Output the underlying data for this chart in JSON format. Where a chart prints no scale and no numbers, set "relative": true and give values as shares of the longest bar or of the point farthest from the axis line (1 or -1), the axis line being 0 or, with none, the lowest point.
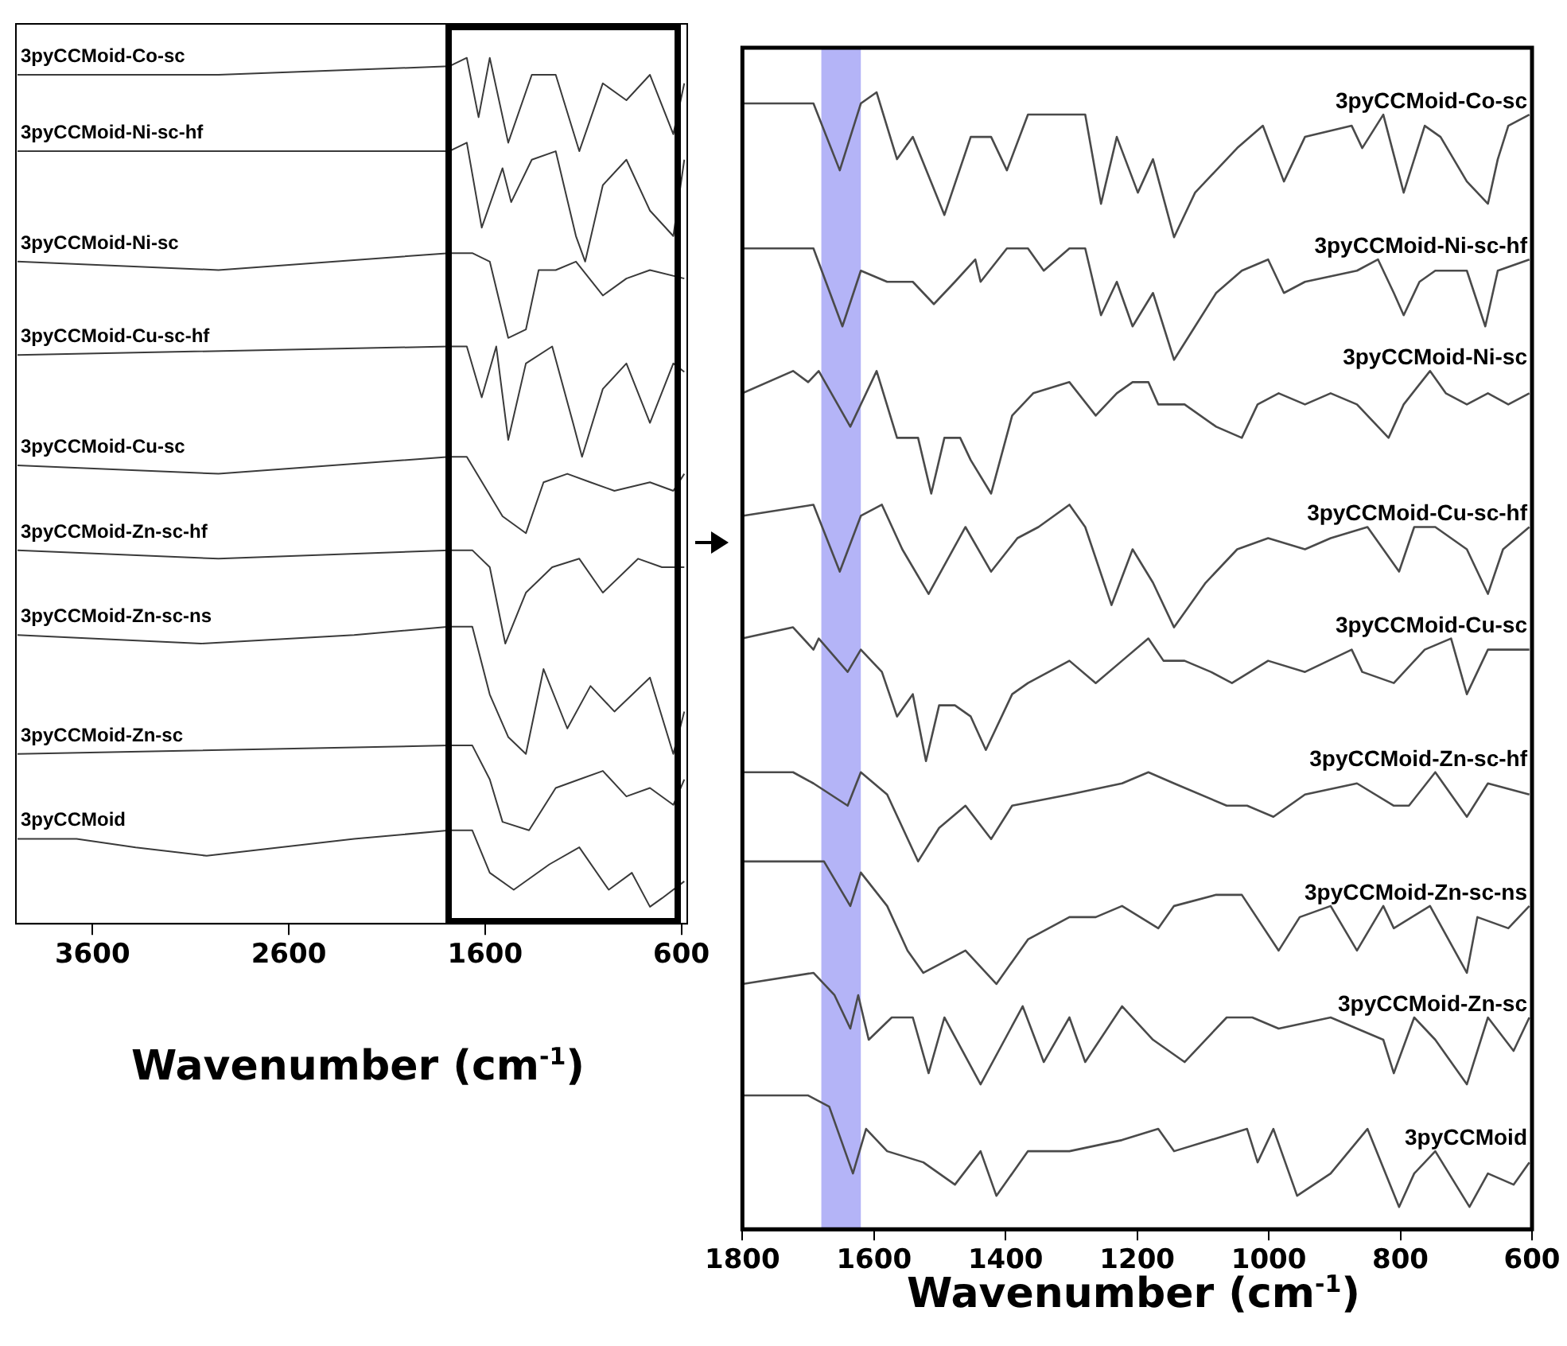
{
  "chart_data": [
    {
      "type": "line",
      "relative": true,
      "xlabel": "Wavenumber (cm$^{-1}$)",
      "xlim": [
        3990,
        570
      ],
      "xticks": [
        3600,
        2600,
        1600,
        600
      ],
      "marker": "none",
      "line_style": "solid",
      "legend": false,
      "series": [
        {
          "name": "3pyCCMoid-Co-sc",
          "color": "#3a3a3a",
          "x": [
            3982,
            2958,
            1783,
            1693,
            1633,
            1576,
            1482,
            1362,
            1240,
            1120,
            1000,
            880,
            760,
            641,
            585
          ],
          "values": [
            0.98,
            0.98,
            0.99,
            1.0,
            0.93,
            1.0,
            0.9,
            0.98,
            0.98,
            0.89,
            0.97,
            0.95,
            0.98,
            0.91,
            0.97
          ]
        },
        {
          "name": "3pyCCMoid-Ni-sc-hf",
          "color": "#3a3a3a",
          "x": [
            3982,
            1783,
            1693,
            1617,
            1511,
            1467,
            1362,
            1240,
            1137,
            1090,
            1000,
            880,
            760,
            641,
            585
          ],
          "values": [
            0.89,
            0.89,
            0.9,
            0.8,
            0.87,
            0.83,
            0.88,
            0.89,
            0.79,
            0.76,
            0.85,
            0.88,
            0.82,
            0.79,
            0.88
          ]
        },
        {
          "name": "3pyCCMoid-Ni-sc",
          "color": "#3a3a3a",
          "x": [
            3982,
            2958,
            1783,
            1665,
            1576,
            1482,
            1392,
            1327,
            1240,
            1137,
            1000,
            880,
            760,
            585
          ],
          "values": [
            0.76,
            0.75,
            0.77,
            0.77,
            0.76,
            0.67,
            0.68,
            0.75,
            0.75,
            0.76,
            0.72,
            0.74,
            0.75,
            0.74
          ]
        },
        {
          "name": "3pyCCMoid-Cu-sc-hf",
          "color": "#3a3a3a",
          "x": [
            3982,
            1783,
            1693,
            1617,
            1543,
            1482,
            1392,
            1258,
            1152,
            1106,
            1000,
            880,
            760,
            641,
            585
          ],
          "values": [
            0.65,
            0.66,
            0.66,
            0.6,
            0.66,
            0.55,
            0.64,
            0.66,
            0.57,
            0.53,
            0.61,
            0.64,
            0.57,
            0.64,
            0.63
          ]
        },
        {
          "name": "3pyCCMoid-Cu-sc",
          "color": "#3a3a3a",
          "x": [
            3982,
            2958,
            1783,
            1693,
            1511,
            1392,
            1302,
            1181,
            1063,
            941,
            760,
            641,
            585
          ],
          "values": [
            0.52,
            0.51,
            0.53,
            0.53,
            0.46,
            0.44,
            0.5,
            0.51,
            0.5,
            0.49,
            0.5,
            0.49,
            0.51
          ]
        },
        {
          "name": "3pyCCMoid-Zn-sc-hf",
          "color": "#3a3a3a",
          "x": [
            3982,
            2958,
            1783,
            1665,
            1576,
            1497,
            1392,
            1258,
            1120,
            1000,
            820,
            699,
            585
          ],
          "values": [
            0.42,
            0.41,
            0.42,
            0.42,
            0.4,
            0.31,
            0.37,
            0.4,
            0.41,
            0.37,
            0.41,
            0.4,
            0.4
          ]
        },
        {
          "name": "3pyCCMoid-Zn-sc-ns",
          "color": "#3a3a3a",
          "x": [
            3982,
            3047,
            2267,
            1783,
            1665,
            1576,
            1482,
            1392,
            1302,
            1181,
            1063,
            941,
            760,
            641,
            585
          ],
          "values": [
            0.32,
            0.31,
            0.32,
            0.33,
            0.33,
            0.25,
            0.2,
            0.18,
            0.28,
            0.21,
            0.26,
            0.23,
            0.27,
            0.18,
            0.23
          ]
        },
        {
          "name": "3pyCCMoid-Zn-sc",
          "color": "#3a3a3a",
          "x": [
            3982,
            1783,
            1665,
            1576,
            1511,
            1376,
            1240,
            1120,
            1000,
            880,
            760,
            641,
            585
          ],
          "values": [
            0.18,
            0.19,
            0.19,
            0.15,
            0.1,
            0.09,
            0.14,
            0.15,
            0.16,
            0.13,
            0.14,
            0.12,
            0.15
          ]
        },
        {
          "name": "3pyCCMoid",
          "color": "#3a3a3a",
          "x": [
            3982,
            3681,
            3380,
            3018,
            2267,
            1783,
            1665,
            1576,
            1454,
            1272,
            1120,
            970,
            852,
            760,
            699,
            585
          ],
          "values": [
            0.08,
            0.08,
            0.07,
            0.06,
            0.08,
            0.09,
            0.09,
            0.04,
            0.02,
            0.05,
            0.07,
            0.02,
            0.04,
            0.0,
            0.01,
            0.03
          ]
        }
      ]
    },
    {
      "type": "line",
      "relative": true,
      "xlabel": "Wavenumber (cm$^{-1}$)",
      "xlim": [
        1800,
        600
      ],
      "xticks": [
        1800,
        1600,
        1400,
        1200,
        1000,
        800,
        600
      ],
      "marker": "none",
      "line_style": "solid",
      "legend": false,
      "bands": [
        {
          "axis": "x",
          "from": 1680,
          "to": 1620,
          "color": "#b4b4f7"
        }
      ],
      "series": [
        {
          "name": "3pyCCMoid-Co-sc",
          "color": "#4a4a4a",
          "x": [
            1800,
            1692,
            1652,
            1620,
            1596,
            1565,
            1541,
            1493,
            1453,
            1422,
            1398,
            1366,
            1303,
            1279,
            1255,
            1231,
            1199,
            1176,
            1144,
            1112,
            1080,
            1048,
            1009,
            977,
            945,
            874,
            858,
            826,
            795,
            763,
            739,
            699,
            667,
            652,
            636,
            604
          ],
          "values": [
            0.99,
            0.99,
            0.93,
            0.99,
            1.0,
            0.94,
            0.96,
            0.89,
            0.96,
            0.96,
            0.93,
            0.98,
            0.98,
            0.98,
            0.9,
            0.96,
            0.91,
            0.94,
            0.87,
            0.91,
            0.93,
            0.95,
            0.97,
            0.92,
            0.96,
            0.97,
            0.95,
            0.98,
            0.91,
            0.97,
            0.96,
            0.92,
            0.9,
            0.94,
            0.97,
            0.98
          ]
        },
        {
          "name": "3pyCCMoid-Ni-sc-hf",
          "color": "#4a4a4a",
          "x": [
            1800,
            1692,
            1648,
            1620,
            1580,
            1541,
            1509,
            1477,
            1446,
            1438,
            1398,
            1366,
            1342,
            1303,
            1279,
            1255,
            1231,
            1207,
            1176,
            1144,
            1112,
            1080,
            1041,
            1001,
            977,
            945,
            866,
            834,
            810,
            795,
            771,
            747,
            699,
            671,
            652,
            604
          ],
          "values": [
            0.86,
            0.86,
            0.79,
            0.84,
            0.83,
            0.83,
            0.81,
            0.83,
            0.85,
            0.83,
            0.86,
            0.86,
            0.84,
            0.86,
            0.86,
            0.8,
            0.83,
            0.79,
            0.82,
            0.76,
            0.79,
            0.82,
            0.84,
            0.85,
            0.82,
            0.83,
            0.84,
            0.85,
            0.82,
            0.8,
            0.83,
            0.84,
            0.84,
            0.79,
            0.84,
            0.85
          ]
        },
        {
          "name": "3pyCCMoid-Ni-sc",
          "color": "#4a4a4a",
          "x": [
            1800,
            1723,
            1700,
            1684,
            1636,
            1596,
            1565,
            1533,
            1513,
            1493,
            1469,
            1453,
            1422,
            1390,
            1358,
            1303,
            1263,
            1231,
            1207,
            1183,
            1168,
            1128,
            1080,
            1041,
            1017,
            985,
            945,
            906,
            866,
            818,
            795,
            755,
            731,
            699,
            667,
            636,
            604
          ],
          "values": [
            0.73,
            0.75,
            0.74,
            0.75,
            0.7,
            0.75,
            0.69,
            0.69,
            0.64,
            0.69,
            0.69,
            0.67,
            0.64,
            0.71,
            0.73,
            0.74,
            0.71,
            0.73,
            0.74,
            0.74,
            0.72,
            0.72,
            0.7,
            0.69,
            0.72,
            0.73,
            0.72,
            0.73,
            0.72,
            0.69,
            0.72,
            0.75,
            0.73,
            0.72,
            0.73,
            0.72,
            0.73
          ]
        },
        {
          "name": "3pyCCMoid-Cu-sc-hf",
          "color": "#4a4a4a",
          "x": [
            1800,
            1692,
            1652,
            1620,
            1588,
            1557,
            1517,
            1461,
            1422,
            1382,
            1350,
            1303,
            1279,
            1239,
            1207,
            1176,
            1144,
            1096,
            1048,
            1001,
            945,
            906,
            850,
            826,
            802,
            779,
            747,
            699,
            667,
            644,
            604
          ],
          "values": [
            0.62,
            0.63,
            0.57,
            0.62,
            0.63,
            0.59,
            0.55,
            0.61,
            0.57,
            0.6,
            0.61,
            0.63,
            0.61,
            0.54,
            0.59,
            0.56,
            0.52,
            0.56,
            0.59,
            0.6,
            0.59,
            0.6,
            0.61,
            0.59,
            0.57,
            0.61,
            0.61,
            0.59,
            0.55,
            0.59,
            0.61
          ]
        },
        {
          "name": "3pyCCMoid-Cu-sc",
          "color": "#4a4a4a",
          "x": [
            1800,
            1723,
            1692,
            1684,
            1640,
            1620,
            1588,
            1565,
            1541,
            1521,
            1501,
            1477,
            1453,
            1430,
            1390,
            1366,
            1303,
            1263,
            1223,
            1183,
            1160,
            1128,
            1088,
            1056,
            1001,
            945,
            874,
            858,
            810,
            763,
            723,
            699,
            667,
            604
          ],
          "values": [
            0.51,
            0.52,
            0.5,
            0.51,
            0.48,
            0.5,
            0.48,
            0.44,
            0.46,
            0.4,
            0.45,
            0.45,
            0.44,
            0.41,
            0.46,
            0.47,
            0.49,
            0.47,
            0.49,
            0.51,
            0.49,
            0.49,
            0.48,
            0.47,
            0.49,
            0.48,
            0.5,
            0.48,
            0.47,
            0.5,
            0.51,
            0.46,
            0.5,
            0.5
          ]
        },
        {
          "name": "3pyCCMoid-Zn-sc-hf",
          "color": "#4a4a4a",
          "x": [
            1800,
            1723,
            1692,
            1640,
            1620,
            1580,
            1533,
            1501,
            1461,
            1422,
            1390,
            1303,
            1223,
            1183,
            1144,
            1064,
            1033,
            993,
            945,
            866,
            810,
            787,
            747,
            699,
            667,
            604
          ],
          "values": [
            0.39,
            0.39,
            0.38,
            0.36,
            0.39,
            0.37,
            0.31,
            0.34,
            0.36,
            0.33,
            0.36,
            0.37,
            0.38,
            0.39,
            0.38,
            0.36,
            0.36,
            0.35,
            0.37,
            0.38,
            0.36,
            0.36,
            0.39,
            0.35,
            0.38,
            0.37
          ]
        },
        {
          "name": "3pyCCMoid-Zn-sc-ns",
          "color": "#4a4a4a",
          "x": [
            1800,
            1700,
            1676,
            1636,
            1620,
            1580,
            1549,
            1525,
            1461,
            1414,
            1366,
            1303,
            1263,
            1223,
            1168,
            1144,
            1080,
            1041,
            985,
            953,
            906,
            866,
            826,
            810,
            755,
            699,
            683,
            636,
            604
          ],
          "values": [
            0.31,
            0.31,
            0.31,
            0.27,
            0.3,
            0.27,
            0.23,
            0.21,
            0.23,
            0.2,
            0.24,
            0.26,
            0.26,
            0.27,
            0.25,
            0.27,
            0.28,
            0.28,
            0.23,
            0.26,
            0.27,
            0.23,
            0.27,
            0.25,
            0.27,
            0.21,
            0.26,
            0.25,
            0.27
          ]
        },
        {
          "name": "3pyCCMoid-Zn-sc",
          "color": "#4a4a4a",
          "x": [
            1800,
            1692,
            1660,
            1636,
            1624,
            1608,
            1573,
            1541,
            1517,
            1493,
            1438,
            1374,
            1342,
            1303,
            1279,
            1223,
            1176,
            1128,
            1064,
            1025,
            985,
            906,
            826,
            810,
            779,
            747,
            699,
            667,
            628,
            604
          ],
          "values": [
            0.2,
            0.21,
            0.19,
            0.16,
            0.19,
            0.15,
            0.17,
            0.17,
            0.12,
            0.17,
            0.11,
            0.18,
            0.13,
            0.17,
            0.13,
            0.18,
            0.15,
            0.13,
            0.17,
            0.17,
            0.16,
            0.17,
            0.15,
            0.12,
            0.17,
            0.15,
            0.11,
            0.17,
            0.14,
            0.17
          ]
        },
        {
          "name": "3pyCCMoid",
          "color": "#4a4a4a",
          "x": [
            1800,
            1700,
            1668,
            1632,
            1612,
            1580,
            1525,
            1477,
            1438,
            1414,
            1366,
            1303,
            1223,
            1168,
            1144,
            1088,
            1033,
            1017,
            993,
            957,
            906,
            850,
            802,
            779,
            747,
            695,
            667,
            628,
            604
          ],
          "values": [
            0.1,
            0.1,
            0.09,
            0.03,
            0.07,
            0.05,
            0.04,
            0.02,
            0.05,
            0.01,
            0.05,
            0.05,
            0.06,
            0.07,
            0.05,
            0.06,
            0.07,
            0.04,
            0.07,
            0.01,
            0.03,
            0.07,
            0.0,
            0.03,
            0.05,
            0.0,
            0.03,
            0.02,
            0.04
          ]
        }
      ]
    }
  ]
}
